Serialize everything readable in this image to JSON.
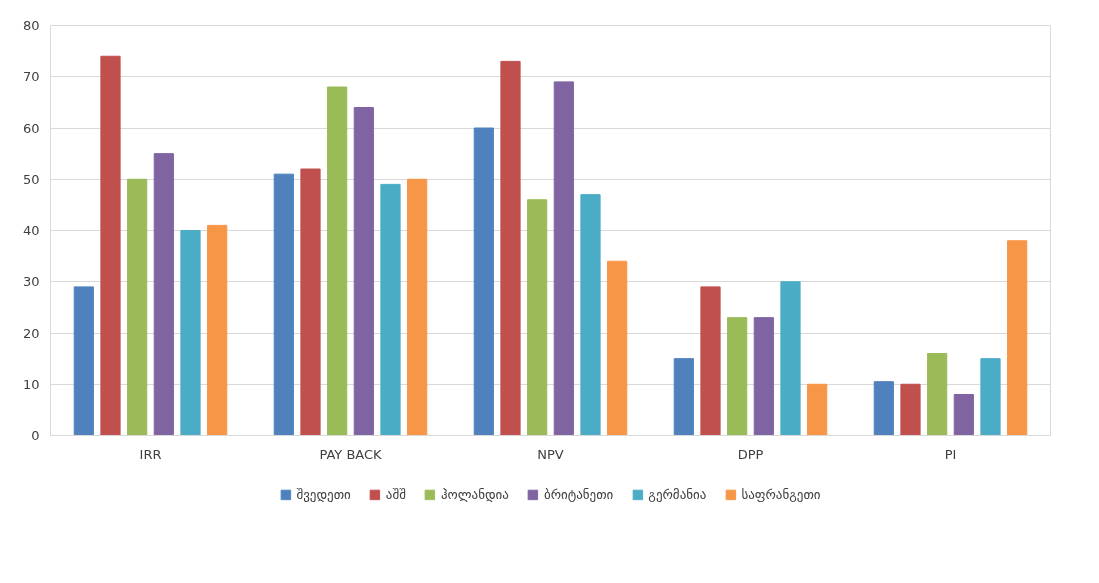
{
  "chart_data": {
    "type": "bar",
    "categories": [
      "IRR",
      "PAY BACK",
      "NPV",
      "DPP",
      "PI"
    ],
    "series": [
      {
        "name": "შვედეთი",
        "color": "#4f81bd",
        "values": [
          29,
          51,
          60,
          15,
          10.5
        ]
      },
      {
        "name": "აშშ",
        "color": "#c0504d",
        "values": [
          74,
          52,
          73,
          29,
          10
        ]
      },
      {
        "name": "ჰოლანდია",
        "color": "#9bbb59",
        "values": [
          50,
          68,
          46,
          23,
          16
        ]
      },
      {
        "name": "ბრიტანეთი",
        "color": "#8064a2",
        "values": [
          55,
          64,
          69,
          23,
          8
        ]
      },
      {
        "name": "გერმანია",
        "color": "#4bacc6",
        "values": [
          40,
          49,
          47,
          30,
          15
        ]
      },
      {
        "name": "საფრანგეთი",
        "color": "#f79646",
        "values": [
          41,
          50,
          34,
          10,
          38
        ]
      }
    ],
    "ylim": [
      0,
      80
    ],
    "yticks": [
      0,
      10,
      20,
      30,
      40,
      50,
      60,
      70,
      80
    ],
    "grid": "y",
    "legend": "bottom"
  }
}
